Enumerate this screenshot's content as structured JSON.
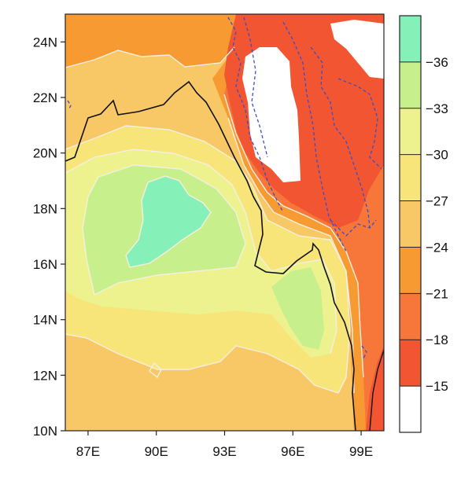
{
  "map": {
    "extent": {
      "lon": [
        86,
        100
      ],
      "lat": [
        10,
        25
      ]
    },
    "lon_ticks": [
      {
        "value": 87,
        "label": "87E"
      },
      {
        "value": 90,
        "label": "90E"
      },
      {
        "value": 93,
        "label": "93E"
      },
      {
        "value": 96,
        "label": "96E"
      },
      {
        "value": 99,
        "label": "99E"
      }
    ],
    "lat_ticks": [
      {
        "value": 10,
        "label": "10N"
      },
      {
        "value": 12,
        "label": "12N"
      },
      {
        "value": 14,
        "label": "14N"
      },
      {
        "value": 16,
        "label": "16N"
      },
      {
        "value": 18,
        "label": "18N"
      },
      {
        "value": 20,
        "label": "20N"
      },
      {
        "value": 22,
        "label": "22N"
      },
      {
        "value": 24,
        "label": "24N"
      }
    ],
    "colors": {
      "no_data": "#ffffff",
      "contour_line": "#f4efe0",
      "coastline": "#111111",
      "dashed_contour": "#3a4fc4"
    }
  },
  "colorbar": {
    "bins": [
      {
        "color": "#ffffff"
      },
      {
        "color": "#f25532"
      },
      {
        "color": "#f7763a"
      },
      {
        "color": "#f89a32"
      },
      {
        "color": "#f8c766"
      },
      {
        "color": "#f7e57a"
      },
      {
        "color": "#eef28e"
      },
      {
        "color": "#c7f08c"
      },
      {
        "color": "#85f0b8"
      }
    ],
    "labels": [
      "−15",
      "−18",
      "−21",
      "−24",
      "−27",
      "−30",
      "−33",
      "−36"
    ]
  }
}
